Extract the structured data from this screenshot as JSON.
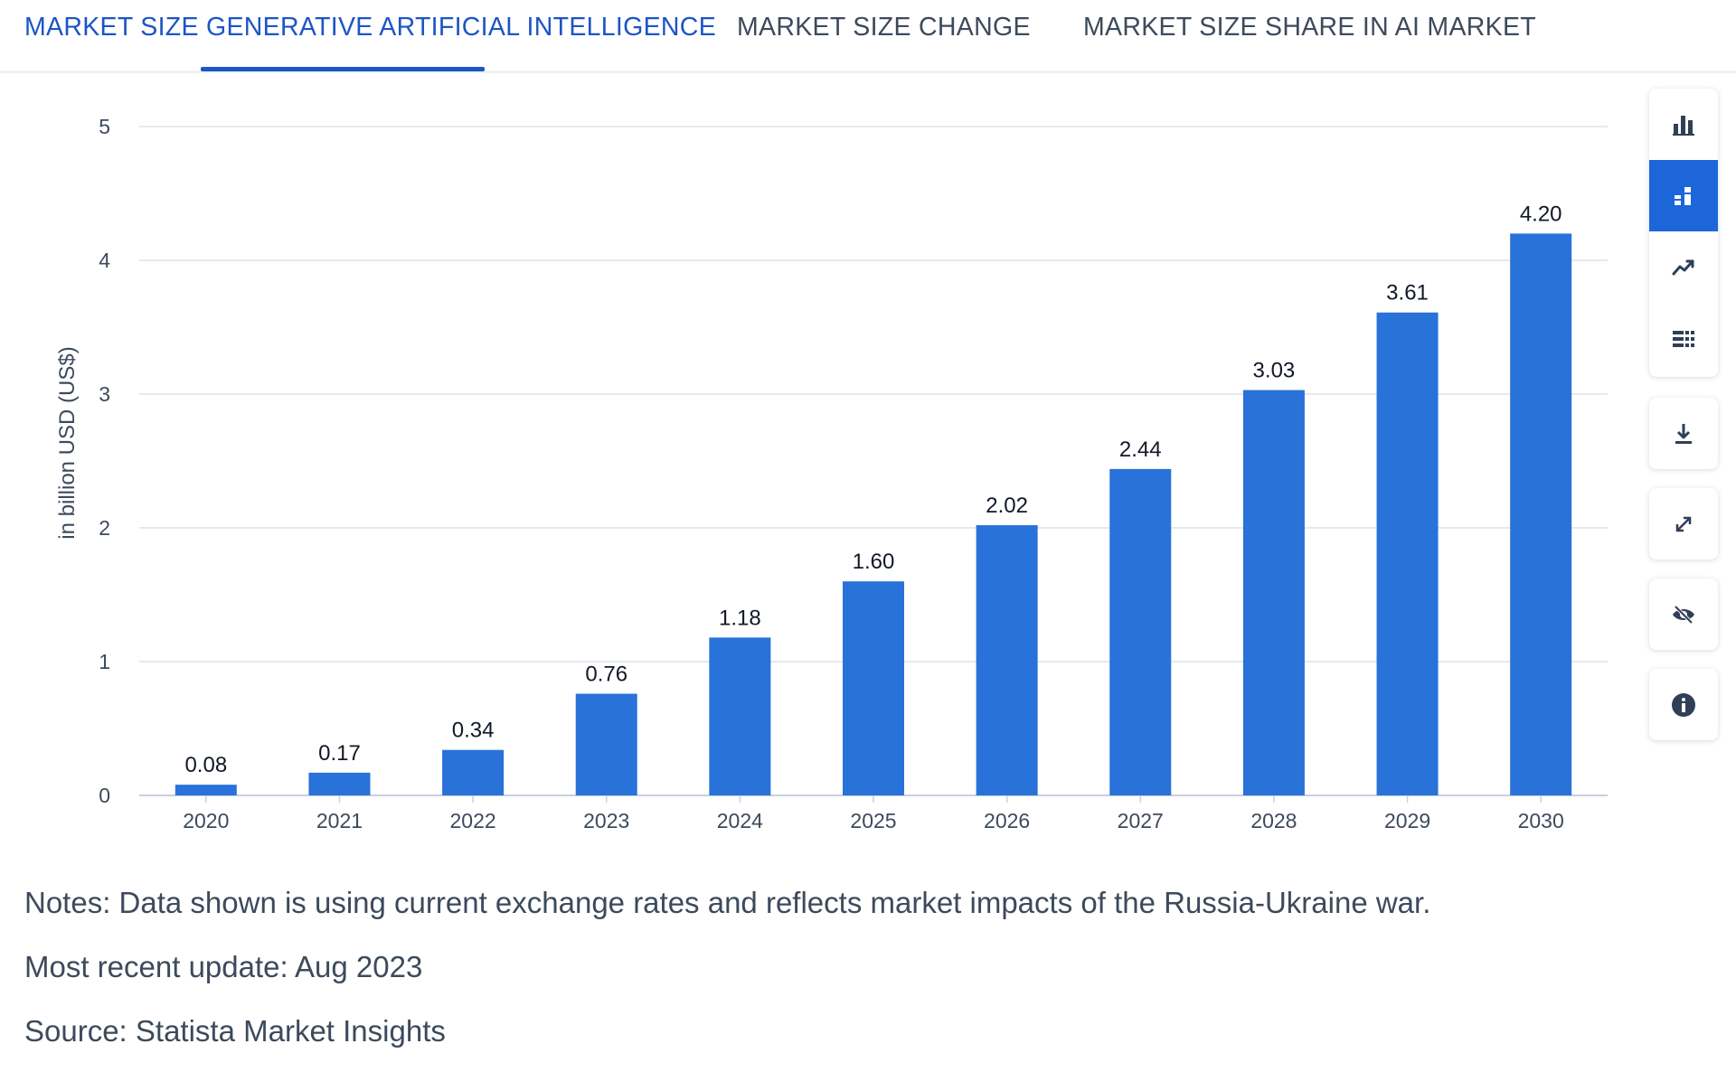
{
  "tabs": [
    {
      "label": "MARKET SIZE GENERATIVE ARTIFICIAL INTELLIGENCE",
      "active": true
    },
    {
      "label": "MARKET SIZE CHANGE",
      "active": false
    },
    {
      "label": "MARKET SIZE SHARE IN AI MARKET",
      "active": false
    }
  ],
  "toolbar": {
    "chart_types": [
      "bar-chart-icon",
      "stacked-bar-chart-icon",
      "line-chart-icon",
      "table-icon"
    ],
    "active_chart_type": "stacked-bar-chart-icon",
    "actions": [
      "download-icon",
      "expand-icon",
      "hide-icon",
      "info-icon"
    ]
  },
  "chart_data": {
    "type": "bar",
    "categories": [
      "2020",
      "2021",
      "2022",
      "2023",
      "2024",
      "2025",
      "2026",
      "2027",
      "2028",
      "2029",
      "2030"
    ],
    "values": [
      0.08,
      0.17,
      0.34,
      0.76,
      1.18,
      1.6,
      2.02,
      2.44,
      3.03,
      3.61,
      4.2
    ],
    "value_labels": [
      "0.08",
      "0.17",
      "0.34",
      "0.76",
      "1.18",
      "1.60",
      "2.02",
      "2.44",
      "3.03",
      "3.61",
      "4.20"
    ],
    "ylabel": "in billion USD (US$)",
    "xlabel": "",
    "ylim": [
      0,
      5
    ],
    "yticks": [
      0,
      1,
      2,
      3,
      4,
      5
    ],
    "grid": true,
    "bar_color": "#2872d9"
  },
  "notes": {
    "note": "Notes: Data shown is using current exchange rates and reflects market impacts of the Russia-Ukraine war.",
    "update": "Most recent update: Aug 2023",
    "source": "Source: Statista Market Insights"
  },
  "colors": {
    "accent": "#1c55c6",
    "bar": "#2872d9",
    "text": "#3d4a5c",
    "grid": "#dde2e8"
  }
}
